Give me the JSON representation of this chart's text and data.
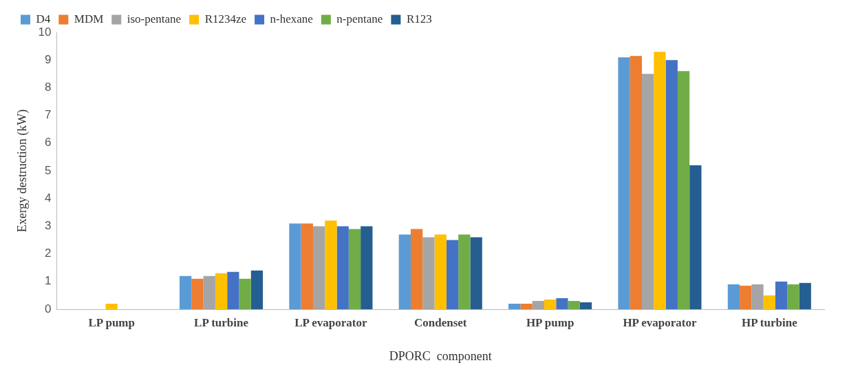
{
  "chart_data": {
    "type": "bar",
    "xlabel": "DPORC  component",
    "ylabel": "Exergy destruction (kW)",
    "categories": [
      "LP pump",
      "LP turbine",
      "LP evaporator",
      "Condenset",
      "HP pump",
      "HP evaporator",
      "HP turbine"
    ],
    "series": [
      {
        "name": "D4",
        "color": "#5b9bd5",
        "values": [
          0,
          1.2,
          3.1,
          2.7,
          0.2,
          9.1,
          0.9
        ]
      },
      {
        "name": "MDM",
        "color": "#ed7d31",
        "values": [
          0,
          1.1,
          3.1,
          2.9,
          0.2,
          9.15,
          0.85
        ]
      },
      {
        "name": "iso-pentane",
        "color": "#a5a5a5",
        "values": [
          0,
          1.2,
          3.0,
          2.6,
          0.3,
          8.5,
          0.9
        ]
      },
      {
        "name": "R1234ze",
        "color": "#ffc000",
        "values": [
          0.2,
          1.3,
          3.2,
          2.7,
          0.35,
          9.3,
          0.5
        ]
      },
      {
        "name": "n-hexane",
        "color": "#4472c4",
        "values": [
          0,
          1.35,
          3.0,
          2.5,
          0.4,
          9.0,
          1.0
        ]
      },
      {
        "name": "n-pentane",
        "color": "#70ad47",
        "values": [
          0,
          1.1,
          2.9,
          2.7,
          0.3,
          8.6,
          0.9
        ]
      },
      {
        "name": "R123",
        "color": "#255e91",
        "values": [
          0,
          1.4,
          3.0,
          2.6,
          0.25,
          5.2,
          0.95
        ]
      }
    ],
    "ylim": [
      0,
      10
    ],
    "yticks": [
      0,
      1,
      2,
      3,
      4,
      5,
      6,
      7,
      8,
      9,
      10
    ],
    "grid": false,
    "legend": "top"
  }
}
